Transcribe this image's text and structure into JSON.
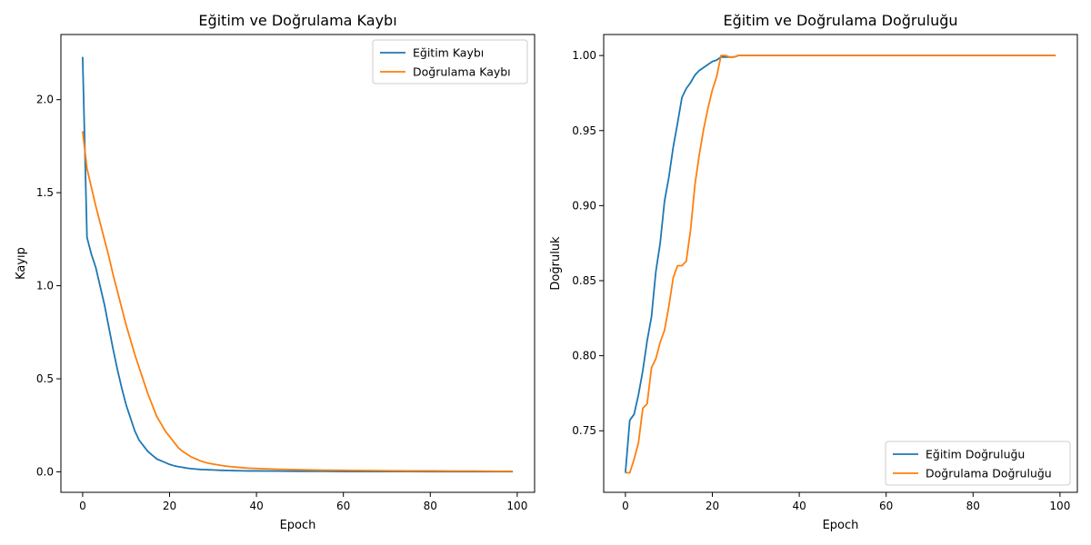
{
  "chart_data": [
    {
      "type": "line",
      "title": "Eğitim ve Doğrulama Kaybı",
      "xlabel": "Epoch",
      "ylabel": "Kayıp",
      "xlim": [
        -5,
        104
      ],
      "ylim": [
        -0.11,
        2.35
      ],
      "xticks": [
        0,
        20,
        40,
        60,
        80,
        100
      ],
      "xtick_labels": [
        "0",
        "20",
        "40",
        "60",
        "80",
        "100"
      ],
      "yticks": [
        0.0,
        0.5,
        1.0,
        1.5,
        2.0
      ],
      "ytick_labels": [
        "0.0",
        "0.5",
        "1.0",
        "1.5",
        "2.0"
      ],
      "legend": "top-right",
      "grid": false,
      "series": [
        {
          "name": "Eğitim Kaybı",
          "color": "#1f77b4",
          "x": [
            0,
            1,
            2,
            3,
            4,
            5,
            6,
            7,
            8,
            9,
            10,
            11,
            12,
            13,
            14,
            15,
            16,
            17,
            18,
            19,
            20,
            21,
            22,
            23,
            24,
            25,
            26,
            27,
            28,
            29,
            30,
            32,
            34,
            36,
            38,
            40,
            45,
            50,
            55,
            60,
            65,
            70,
            75,
            80,
            85,
            90,
            95,
            99
          ],
          "y": [
            2.23,
            1.26,
            1.17,
            1.1,
            1.0,
            0.9,
            0.78,
            0.66,
            0.55,
            0.45,
            0.36,
            0.29,
            0.22,
            0.17,
            0.14,
            0.11,
            0.09,
            0.07,
            0.06,
            0.05,
            0.04,
            0.033,
            0.028,
            0.024,
            0.02,
            0.017,
            0.015,
            0.013,
            0.012,
            0.011,
            0.01,
            0.008,
            0.007,
            0.006,
            0.005,
            0.005,
            0.004,
            0.003,
            0.003,
            0.002,
            0.002,
            0.002,
            0.002,
            0.001,
            0.001,
            0.001,
            0.001,
            0.001
          ]
        },
        {
          "name": "Doğrulama Kaybı",
          "color": "#ff7f0e",
          "x": [
            0,
            1,
            2,
            3,
            4,
            5,
            6,
            7,
            8,
            9,
            10,
            11,
            12,
            13,
            14,
            15,
            16,
            17,
            18,
            19,
            20,
            21,
            22,
            23,
            24,
            25,
            26,
            27,
            28,
            29,
            30,
            32,
            34,
            36,
            38,
            40,
            45,
            50,
            55,
            60,
            65,
            70,
            75,
            80,
            85,
            90,
            95,
            99
          ],
          "y": [
            1.83,
            1.63,
            1.53,
            1.43,
            1.34,
            1.25,
            1.16,
            1.06,
            0.97,
            0.88,
            0.79,
            0.71,
            0.63,
            0.56,
            0.49,
            0.42,
            0.36,
            0.3,
            0.26,
            0.22,
            0.19,
            0.16,
            0.13,
            0.11,
            0.095,
            0.08,
            0.07,
            0.06,
            0.052,
            0.046,
            0.042,
            0.034,
            0.028,
            0.024,
            0.02,
            0.018,
            0.014,
            0.011,
            0.009,
            0.008,
            0.007,
            0.006,
            0.005,
            0.005,
            0.004,
            0.004,
            0.003,
            0.003
          ]
        }
      ]
    },
    {
      "type": "line",
      "title": "Eğitim ve Doğrulama Doğruluğu",
      "xlabel": "Epoch",
      "ylabel": "Doğruluk",
      "xlim": [
        -5,
        104
      ],
      "ylim": [
        0.709,
        1.014
      ],
      "xticks": [
        0,
        20,
        40,
        60,
        80,
        100
      ],
      "xtick_labels": [
        "0",
        "20",
        "40",
        "60",
        "80",
        "100"
      ],
      "yticks": [
        0.75,
        0.8,
        0.85,
        0.9,
        0.95,
        1.0
      ],
      "ytick_labels": [
        "0.75",
        "0.80",
        "0.85",
        "0.90",
        "0.95",
        "1.00"
      ],
      "legend": "bottom-right",
      "grid": false,
      "series": [
        {
          "name": "Eğitim Doğruluğu",
          "color": "#1f77b4",
          "x": [
            0,
            1,
            2,
            3,
            4,
            5,
            6,
            7,
            8,
            9,
            10,
            11,
            12,
            13,
            14,
            15,
            16,
            17,
            18,
            19,
            20,
            21,
            22,
            23,
            24,
            25,
            26,
            27,
            28,
            29,
            30,
            99
          ],
          "y": [
            0.722,
            0.757,
            0.761,
            0.774,
            0.79,
            0.81,
            0.826,
            0.856,
            0.875,
            0.903,
            0.919,
            0.939,
            0.955,
            0.972,
            0.978,
            0.982,
            0.987,
            0.99,
            0.992,
            0.994,
            0.996,
            0.997,
            0.999,
            0.999,
            0.999,
            0.999,
            1.0,
            1.0,
            1.0,
            1.0,
            1.0,
            1.0
          ]
        },
        {
          "name": "Doğrulama Doğruluğu",
          "color": "#ff7f0e",
          "x": [
            0,
            1,
            2,
            3,
            4,
            5,
            6,
            7,
            8,
            9,
            10,
            11,
            12,
            13,
            14,
            15,
            16,
            17,
            18,
            19,
            20,
            21,
            22,
            23,
            24,
            25,
            26,
            27,
            28,
            29,
            30,
            99
          ],
          "y": [
            0.722,
            0.722,
            0.731,
            0.742,
            0.765,
            0.768,
            0.792,
            0.798,
            0.809,
            0.817,
            0.833,
            0.852,
            0.86,
            0.86,
            0.863,
            0.884,
            0.914,
            0.934,
            0.951,
            0.965,
            0.977,
            0.986,
            1.0,
            1.0,
            0.999,
            0.999,
            1.0,
            1.0,
            1.0,
            1.0,
            1.0,
            1.0
          ]
        }
      ]
    }
  ]
}
